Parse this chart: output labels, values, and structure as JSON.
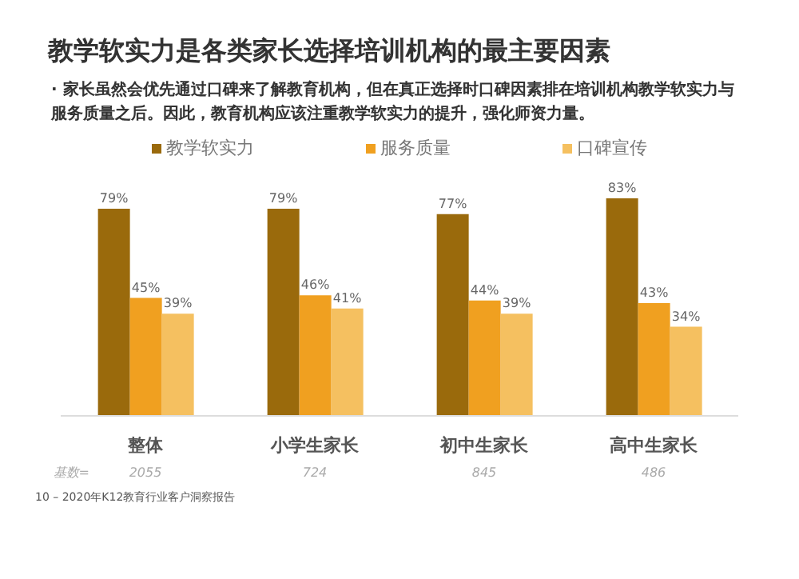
{
  "chart_data": {
    "type": "bar",
    "title": "教学软实力是各类家长选择培训机构的最主要因素",
    "subtitle": "· 家长虽然会优先通过口碑来了解教育机构，但在真正选择时口碑因素排在培训机构教学软实力与服务质量之后。因此，教育机构应该注重教学软实力的提升，强化师资力量。",
    "categories": [
      "整体",
      "小学生家长",
      "初中生家长",
      "高中生家长"
    ],
    "series": [
      {
        "name": "教学软实力",
        "color": "#9a6a0c",
        "values": [
          79,
          79,
          77,
          83
        ],
        "value_labels": [
          "79%",
          "79%",
          "77%",
          "83%"
        ]
      },
      {
        "name": "服务质量",
        "color": "#f0a020",
        "values": [
          45,
          46,
          44,
          43
        ],
        "value_labels": [
          "45%",
          "46%",
          "44%",
          "43%"
        ]
      },
      {
        "name": "口碑宣传",
        "color": "#f5c060",
        "values": [
          39,
          41,
          39,
          34
        ],
        "value_labels": [
          "39%",
          "41%",
          "39%",
          "34%"
        ]
      }
    ],
    "legend": "top",
    "grid": false,
    "annotations": [
      "基数=",
      "2055",
      "724",
      "845",
      "486",
      "10 – 2020年K12教育行业客户洞察报告"
    ]
  }
}
